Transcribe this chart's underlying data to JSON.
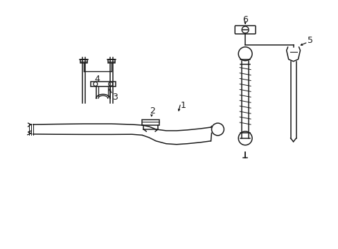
{
  "background_color": "#ffffff",
  "line_color": "#1a1a1a",
  "fig_width": 4.89,
  "fig_height": 3.6,
  "dpi": 100,
  "label_fs": 9,
  "lw": 1.1
}
